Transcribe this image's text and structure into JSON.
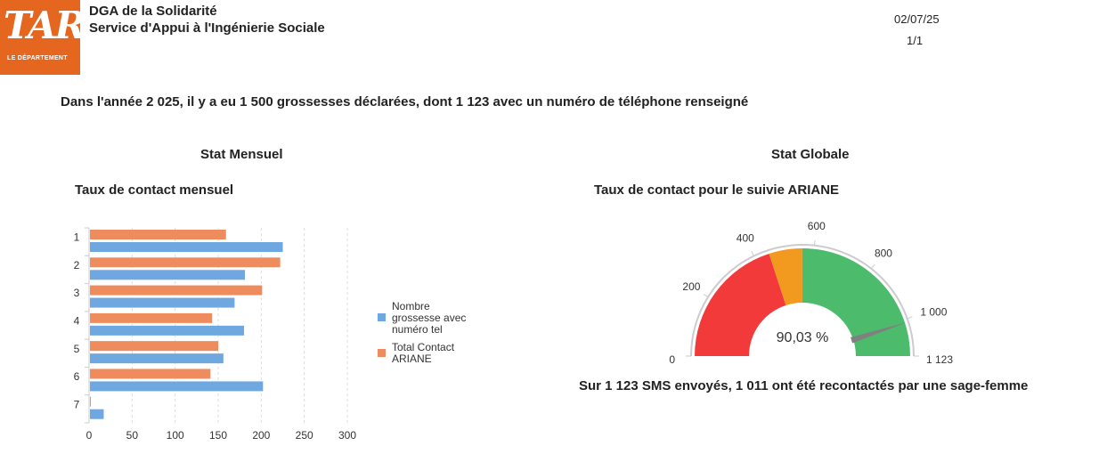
{
  "header": {
    "logo_text": "TARN",
    "logo_subtext": "LE DÉPARTEMENT",
    "title_line1": "DGA de la Solidarité",
    "title_line2": "Service d'Appui à l'Ingénierie Sociale",
    "date": "02/07/25",
    "page": "1/1"
  },
  "summary": "Dans l'année 2 025, il y a eu 1 500 grossesses déclarées, dont 1 123 avec un numéro de téléphone renseigné",
  "sections": {
    "left": "Stat Mensuel",
    "right": "Stat Globale"
  },
  "colors": {
    "blue": "#6fa8e0",
    "orange": "#ef8c5e",
    "red": "#f23a3a",
    "amber": "#f29a1f",
    "green": "#4cbb6c",
    "needle": "#808080"
  },
  "footer": "Sur 1 123 SMS envoyés, 1 011 ont été recontactés par une sage-femme",
  "chart_data": [
    {
      "type": "bar",
      "orientation": "horizontal",
      "title": "Taux de contact mensuel",
      "categories": [
        "1",
        "2",
        "3",
        "4",
        "5",
        "6",
        "7"
      ],
      "series": [
        {
          "name": "Total Contact ARIANE",
          "color": "#ef8c5e",
          "values": [
            158,
            221,
            200,
            142,
            149,
            140,
            1
          ]
        },
        {
          "name": "Nombre grossesse avec numéro tel",
          "color": "#6fa8e0",
          "values": [
            224,
            180,
            168,
            179,
            155,
            201,
            16
          ]
        }
      ],
      "xlabel": "",
      "ylabel": "",
      "xlim": [
        0,
        300
      ],
      "xticks": [
        0,
        50,
        100,
        150,
        200,
        250,
        300
      ],
      "grid": true,
      "legend_position": "right",
      "legend": [
        "Nombre grossesse avec numéro tel",
        "Total Contact ARIANE"
      ]
    },
    {
      "type": "gauge",
      "title": "Taux de contact pour le suivie ARIANE",
      "min": 0,
      "max": 1123,
      "value": 1011,
      "center_label": "90,03 %",
      "ticks": [
        "0",
        "200",
        "400",
        "600",
        "800",
        "1 000",
        "1 123"
      ],
      "bands": [
        {
          "from": 0,
          "to": 449,
          "color": "#f23a3a"
        },
        {
          "from": 449,
          "to": 561,
          "color": "#f29a1f"
        },
        {
          "from": 561,
          "to": 1123,
          "color": "#4cbb6c"
        }
      ]
    }
  ]
}
